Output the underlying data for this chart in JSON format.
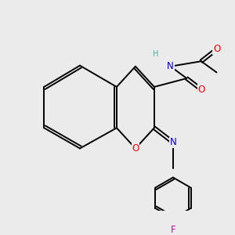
{
  "background_color": "#ebebeb",
  "bond_color": "#000000",
  "atom_colors": {
    "O": "#ff0000",
    "N": "#0000cc",
    "F": "#cc00cc",
    "H": "#5f9ea0",
    "C": "#000000"
  },
  "figsize": [
    3.0,
    3.0
  ],
  "dpi": 100
}
